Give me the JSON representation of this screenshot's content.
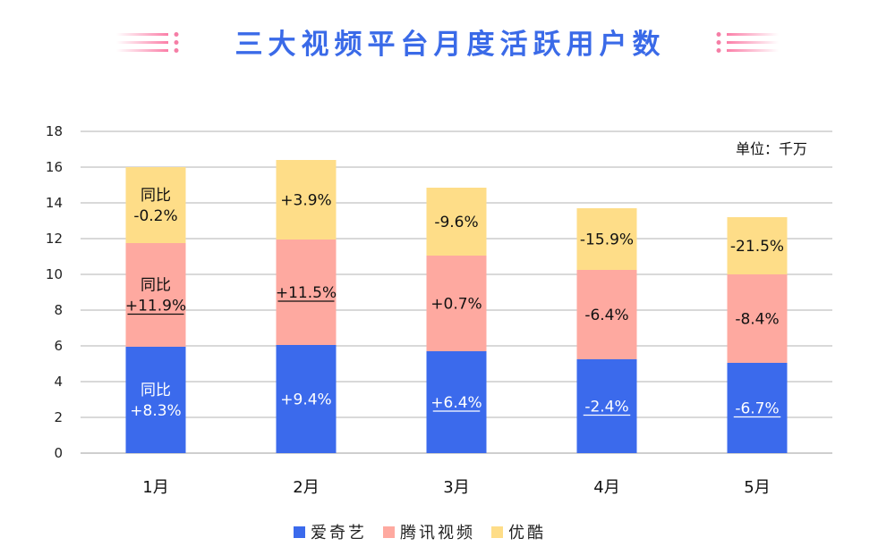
{
  "chart_data": {
    "type": "bar",
    "stacked": true,
    "title": "三大视频平台月度活跃用户数",
    "unit_note": "单位：千万",
    "categories": [
      "1月",
      "2月",
      "3月",
      "4月",
      "5月"
    ],
    "ylim": [
      0,
      18
    ],
    "yticks": [
      0,
      2,
      4,
      6,
      8,
      10,
      12,
      14,
      16,
      18
    ],
    "grid": true,
    "legend_position": "bottom",
    "series": [
      {
        "name": "爱奇艺",
        "color": "#3b6aec",
        "label_color": "#ffffff",
        "values": [
          5.95,
          6.05,
          5.7,
          5.25,
          5.05
        ],
        "labels": [
          [
            "同比",
            "+8.3%"
          ],
          [
            "+9.4%"
          ],
          [
            "+6.4%"
          ],
          [
            "-2.4%"
          ],
          [
            "-6.7%"
          ]
        ],
        "underline": [
          false,
          false,
          true,
          true,
          true
        ]
      },
      {
        "name": "腾讯视频",
        "color": "#fea9a0",
        "label_color": "#111111",
        "values": [
          5.8,
          5.9,
          5.35,
          5.0,
          4.95
        ],
        "labels": [
          [
            "同比",
            "+11.9%"
          ],
          [
            "+11.5%"
          ],
          [
            "+0.7%"
          ],
          [
            "-6.4%"
          ],
          [
            "-8.4%"
          ]
        ],
        "underline": [
          true,
          true,
          false,
          false,
          false
        ]
      },
      {
        "name": "优酷",
        "color": "#fedd88",
        "label_color": "#111111",
        "values": [
          4.25,
          4.45,
          3.8,
          3.45,
          3.2
        ],
        "labels": [
          [
            "同比",
            "-0.2%"
          ],
          [
            "+3.9%"
          ],
          [
            "-9.6%"
          ],
          [
            "-15.9%"
          ],
          [
            "-21.5%"
          ]
        ],
        "underline": [
          false,
          false,
          false,
          false,
          false
        ]
      }
    ]
  }
}
